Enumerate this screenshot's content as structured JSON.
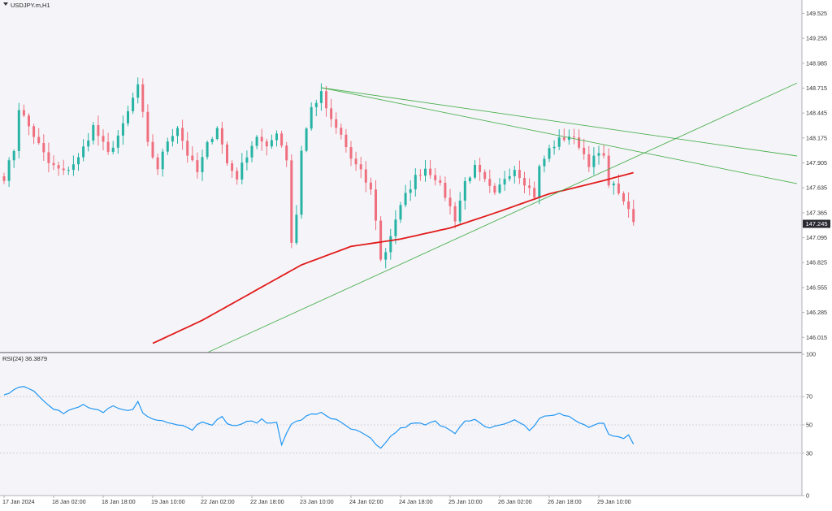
{
  "window": {
    "symbol_label": "USDJPY.m,H1"
  },
  "colors": {
    "background": "#f5f5f9",
    "bull": "#26b3a4",
    "bear": "#ef6f7f",
    "ma": "#e11b1b",
    "trend": "#4caf50",
    "rsi": "#2196f3",
    "grid_text": "#333333",
    "price_tag_bg": "#2a2a33",
    "price_tag_text": "#ffffff",
    "frame": "#b0b0b8"
  },
  "chart_data": [
    {
      "type": "candlestick",
      "title": "USDJPY.m,H1",
      "ylim": [
        145.85,
        149.67
      ],
      "y_ticks": [
        "149.525",
        "149.255",
        "148.985",
        "148.715",
        "148.445",
        "148.175",
        "147.905",
        "147.635",
        "147.365",
        "147.095",
        "146.825",
        "146.555",
        "146.285",
        "146.015"
      ],
      "current_price": "147.245",
      "x_ticks": [
        "17 Jan 2024",
        "18 Jan 02:00",
        "18 Jan 18:00",
        "19 Jan 10:00",
        "22 Jan 02:00",
        "22 Jan 18:00",
        "23 Jan 10:00",
        "24 Jan 02:00",
        "24 Jan 18:00",
        "25 Jan 10:00",
        "26 Jan 02:00",
        "26 Jan 18:00",
        "29 Jan 10:00"
      ],
      "x_tick_index": [
        0,
        10,
        20,
        30,
        40,
        50,
        60,
        70,
        80,
        90,
        100,
        110,
        120
      ],
      "close_path": [
        [
          0,
          147.75
        ],
        [
          2,
          148.05
        ],
        [
          3,
          148.5
        ],
        [
          6,
          148.2
        ],
        [
          9,
          147.9
        ],
        [
          12,
          147.8
        ],
        [
          15,
          147.95
        ],
        [
          18,
          148.3
        ],
        [
          21,
          148.0
        ],
        [
          24,
          148.3
        ],
        [
          27,
          148.75
        ],
        [
          29,
          148.1
        ],
        [
          31,
          147.85
        ],
        [
          33,
          148.15
        ],
        [
          35,
          148.3
        ],
        [
          37,
          148.0
        ],
        [
          39,
          147.8
        ],
        [
          41,
          148.1
        ],
        [
          43,
          148.3
        ],
        [
          45,
          147.9
        ],
        [
          47,
          147.75
        ],
        [
          49,
          148.0
        ],
        [
          51,
          148.2
        ],
        [
          53,
          148.05
        ],
        [
          55,
          148.25
        ],
        [
          57,
          147.95
        ],
        [
          58,
          147.05
        ],
        [
          59,
          147.35
        ],
        [
          60,
          148.05
        ],
        [
          62,
          148.5
        ],
        [
          64,
          148.65
        ],
        [
          66,
          148.35
        ],
        [
          68,
          148.2
        ],
        [
          70,
          147.95
        ],
        [
          72,
          147.8
        ],
        [
          74,
          147.6
        ],
        [
          75,
          147.3
        ],
        [
          76,
          146.85
        ],
        [
          77,
          146.95
        ],
        [
          79,
          147.3
        ],
        [
          81,
          147.55
        ],
        [
          83,
          147.75
        ],
        [
          85,
          147.85
        ],
        [
          87,
          147.75
        ],
        [
          89,
          147.55
        ],
        [
          91,
          147.3
        ],
        [
          93,
          147.7
        ],
        [
          95,
          147.85
        ],
        [
          97,
          147.7
        ],
        [
          99,
          147.55
        ],
        [
          101,
          147.75
        ],
        [
          103,
          147.85
        ],
        [
          105,
          147.7
        ],
        [
          107,
          147.55
        ],
        [
          108,
          147.85
        ],
        [
          110,
          148.05
        ],
        [
          112,
          148.15
        ],
        [
          114,
          148.2
        ],
        [
          116,
          148.1
        ],
        [
          118,
          147.9
        ],
        [
          120,
          148.0
        ],
        [
          121,
          147.95
        ],
        [
          122,
          147.7
        ],
        [
          124,
          147.6
        ],
        [
          125,
          147.45
        ],
        [
          126,
          147.4
        ],
        [
          127,
          147.25
        ]
      ],
      "ma": [
        [
          30,
          145.95
        ],
        [
          40,
          146.2
        ],
        [
          50,
          146.5
        ],
        [
          60,
          146.8
        ],
        [
          70,
          147.0
        ],
        [
          80,
          147.08
        ],
        [
          90,
          147.2
        ],
        [
          100,
          147.38
        ],
        [
          110,
          147.57
        ],
        [
          120,
          147.7
        ],
        [
          127,
          147.8
        ]
      ],
      "trendlines": [
        {
          "from": [
            64,
            148.72
          ],
          "to": [
            160,
            147.68
          ]
        },
        {
          "from": [
            64,
            148.72
          ],
          "to": [
            160,
            147.98
          ]
        },
        {
          "from": [
            41,
            145.85
          ],
          "to": [
            160,
            148.77
          ]
        }
      ]
    },
    {
      "type": "line",
      "title": "RSI(24) 36.3879",
      "ylim": [
        0,
        100
      ],
      "y_ticks": [
        "100",
        "70",
        "50",
        "30",
        "0"
      ],
      "y_tick_values": [
        100,
        70,
        50,
        30,
        0
      ],
      "levels": [
        70,
        50,
        30
      ],
      "path": [
        [
          0,
          72
        ],
        [
          2,
          75
        ],
        [
          4,
          78
        ],
        [
          6,
          74
        ],
        [
          8,
          68
        ],
        [
          10,
          62
        ],
        [
          12,
          58
        ],
        [
          14,
          61
        ],
        [
          16,
          64
        ],
        [
          18,
          61
        ],
        [
          20,
          58
        ],
        [
          22,
          63
        ],
        [
          24,
          60
        ],
        [
          26,
          62
        ],
        [
          27,
          66
        ],
        [
          28,
          58
        ],
        [
          30,
          54
        ],
        [
          32,
          53
        ],
        [
          34,
          52
        ],
        [
          36,
          50
        ],
        [
          38,
          47
        ],
        [
          40,
          53
        ],
        [
          42,
          51
        ],
        [
          44,
          55
        ],
        [
          46,
          49
        ],
        [
          48,
          51
        ],
        [
          50,
          52
        ],
        [
          52,
          53
        ],
        [
          54,
          51
        ],
        [
          55,
          52
        ],
        [
          56,
          37
        ],
        [
          57,
          45
        ],
        [
          58,
          50
        ],
        [
          60,
          54
        ],
        [
          62,
          57
        ],
        [
          64,
          59
        ],
        [
          66,
          55
        ],
        [
          68,
          51
        ],
        [
          70,
          47
        ],
        [
          72,
          44
        ],
        [
          74,
          40
        ],
        [
          75,
          35
        ],
        [
          76,
          33
        ],
        [
          77,
          38
        ],
        [
          79,
          45
        ],
        [
          81,
          49
        ],
        [
          83,
          51
        ],
        [
          85,
          50
        ],
        [
          87,
          52
        ],
        [
          89,
          49
        ],
        [
          91,
          45
        ],
        [
          93,
          52
        ],
        [
          95,
          53
        ],
        [
          97,
          48
        ],
        [
          99,
          49
        ],
        [
          101,
          51
        ],
        [
          103,
          53
        ],
        [
          105,
          50
        ],
        [
          106,
          46
        ],
        [
          108,
          54
        ],
        [
          110,
          57
        ],
        [
          112,
          58
        ],
        [
          114,
          55
        ],
        [
          116,
          52
        ],
        [
          118,
          48
        ],
        [
          120,
          51
        ],
        [
          121,
          52
        ],
        [
          122,
          44
        ],
        [
          124,
          42
        ],
        [
          125,
          40
        ],
        [
          126,
          42
        ],
        [
          127,
          36.39
        ]
      ]
    }
  ]
}
